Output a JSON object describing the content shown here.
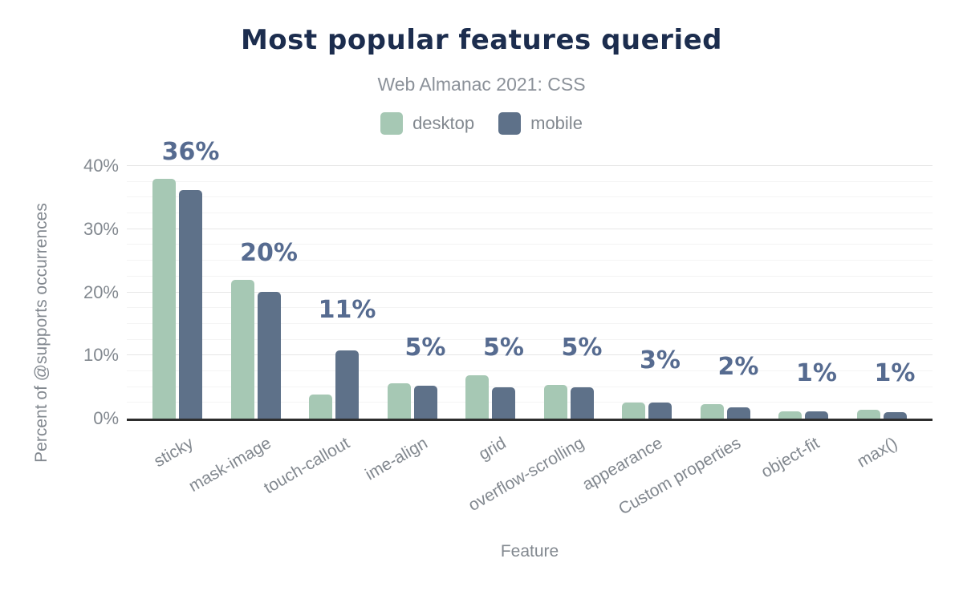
{
  "chart_data": {
    "type": "bar",
    "title": "Most popular features queried",
    "subtitle": "Web Almanac 2021: CSS",
    "xlabel": "Feature",
    "ylabel": "Percent of @supports occurrences",
    "ylim": [
      0,
      40
    ],
    "yticks": [
      "0%",
      "10%",
      "20%",
      "30%",
      "40%"
    ],
    "grid": "horizontal, major every 10%, minor every 2.5%",
    "legend_position": "top",
    "categories": [
      "sticky",
      "mask-image",
      "touch-callout",
      "ime-align",
      "grid",
      "overflow-scrolling",
      "appearance",
      "Custom properties",
      "object-fit",
      "max()"
    ],
    "series": [
      {
        "name": "desktop",
        "color": "#a6c8b4",
        "values": [
          38.0,
          22.0,
          3.8,
          5.6,
          6.8,
          5.3,
          2.5,
          2.3,
          1.2,
          1.4
        ]
      },
      {
        "name": "mobile",
        "color": "#5e7189",
        "values": [
          36.2,
          20.1,
          10.8,
          5.2,
          5.0,
          5.0,
          2.6,
          1.8,
          1.2,
          1.0
        ]
      }
    ],
    "bar_labels": [
      "36%",
      "20%",
      "11%",
      "5%",
      "5%",
      "5%",
      "3%",
      "2%",
      "1%",
      "1%"
    ]
  },
  "colors": {
    "title": "#1c2d4e",
    "subtitle": "#8b9199",
    "axis_text": "#82888f",
    "value_label": "#566b90",
    "grid_major": "#e6e6e6",
    "grid_minor": "#f4f4f4",
    "axis_line": "#2d2d2d",
    "desktop": "#a6c8b4",
    "mobile": "#5e7189"
  }
}
